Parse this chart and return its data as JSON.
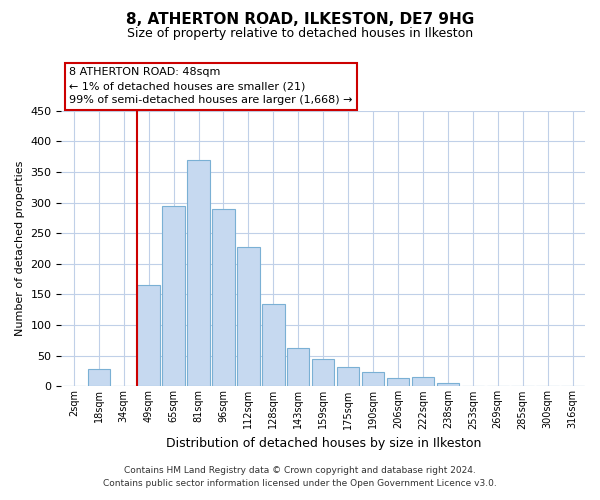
{
  "title": "8, ATHERTON ROAD, ILKESTON, DE7 9HG",
  "subtitle": "Size of property relative to detached houses in Ilkeston",
  "xlabel": "Distribution of detached houses by size in Ilkeston",
  "ylabel": "Number of detached properties",
  "bar_labels": [
    "2sqm",
    "18sqm",
    "34sqm",
    "49sqm",
    "65sqm",
    "81sqm",
    "96sqm",
    "112sqm",
    "128sqm",
    "143sqm",
    "159sqm",
    "175sqm",
    "190sqm",
    "206sqm",
    "222sqm",
    "238sqm",
    "253sqm",
    "269sqm",
    "285sqm",
    "300sqm",
    "316sqm"
  ],
  "bar_values": [
    0,
    28,
    0,
    165,
    295,
    370,
    290,
    228,
    135,
    62,
    44,
    32,
    23,
    14,
    15,
    6,
    0,
    0,
    0,
    0,
    0
  ],
  "bar_color": "#c6d9f0",
  "bar_edge_color": "#7ab0d4",
  "vline_index": 3,
  "vline_color": "#cc0000",
  "annotation_title": "8 ATHERTON ROAD: 48sqm",
  "annotation_line1": "← 1% of detached houses are smaller (21)",
  "annotation_line2": "99% of semi-detached houses are larger (1,668) →",
  "annotation_box_color": "#ffffff",
  "annotation_box_edge": "#cc0000",
  "ylim": [
    0,
    450
  ],
  "yticks": [
    0,
    50,
    100,
    150,
    200,
    250,
    300,
    350,
    400,
    450
  ],
  "footer1": "Contains HM Land Registry data © Crown copyright and database right 2024.",
  "footer2": "Contains public sector information licensed under the Open Government Licence v3.0.",
  "bg_color": "#ffffff",
  "grid_color": "#c0d0e8"
}
